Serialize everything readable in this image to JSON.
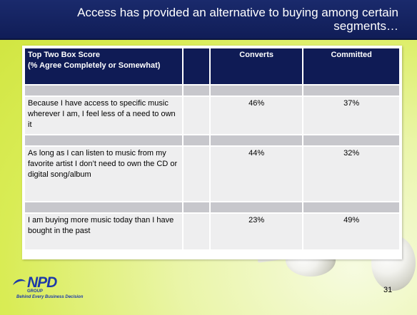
{
  "title": "Access has provided an alternative to buying among certain segments…",
  "table": {
    "header": {
      "label": "Top Two Box Score\n(% Agree Completely or Somewhat)",
      "col1": "Converts",
      "col2": "Committed"
    },
    "rows": [
      {
        "statement": "Because I have access to specific music wherever I am, I feel less of a need to own it",
        "converts": "46%",
        "committed": "37%"
      },
      {
        "statement": "As long as I can listen to music from my favorite artist I don’t need to own the CD or digital song/album",
        "converts": "44%",
        "committed": "32%"
      },
      {
        "statement": "I am buying more music today than I have bought in the past",
        "converts": "23%",
        "committed": "49%"
      }
    ]
  },
  "logo": {
    "mark": "NPD",
    "group": "GROUP",
    "tagline": "Behind Every Business Decision"
  },
  "page_number": "31",
  "colors": {
    "title_bar": "#101d57",
    "header_cell": "#0f1b55",
    "background": "#d9ec55"
  }
}
